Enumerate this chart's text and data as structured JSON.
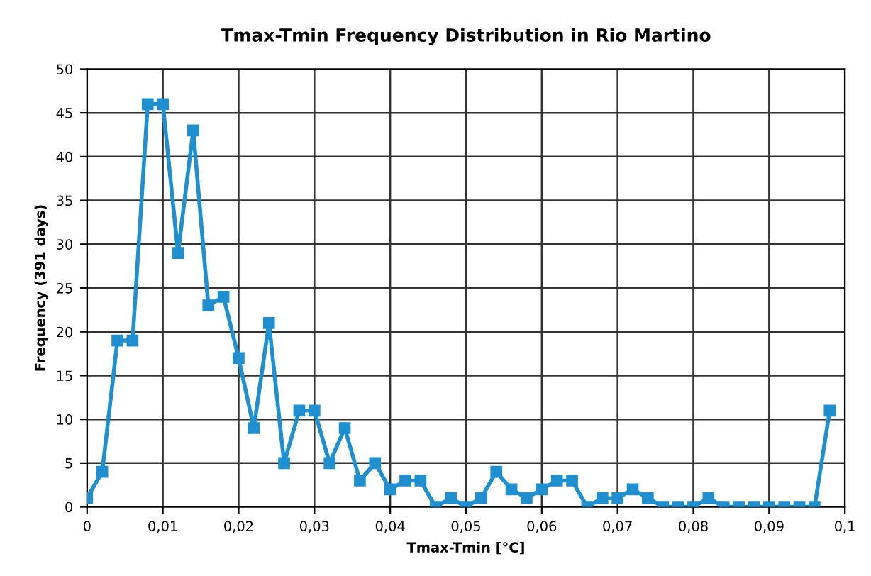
{
  "chart_data": {
    "type": "line",
    "title": "Tmax-Tmin Frequency Distribution in Rio Martino",
    "xlabel": "Tmax-Tmin [°C]",
    "ylabel": "Frequency (391 days)",
    "x": [
      0,
      0.002,
      0.004,
      0.006,
      0.008,
      0.01,
      0.012,
      0.014,
      0.016,
      0.018,
      0.02,
      0.022,
      0.024,
      0.026,
      0.028,
      0.03,
      0.032,
      0.034,
      0.036,
      0.038,
      0.04,
      0.042,
      0.044,
      0.046,
      0.048,
      0.05,
      0.052,
      0.054,
      0.056,
      0.058,
      0.06,
      0.062,
      0.064,
      0.066,
      0.068,
      0.07,
      0.072,
      0.074,
      0.076,
      0.078,
      0.08,
      0.082,
      0.084,
      0.086,
      0.088,
      0.09,
      0.092,
      0.094,
      0.096,
      0.098
    ],
    "series": [
      {
        "color": "#1f8fd0",
        "values": [
          1,
          4,
          19,
          19,
          46,
          46,
          29,
          43,
          23,
          24,
          17,
          9,
          21,
          5,
          11,
          11,
          5,
          9,
          3,
          5,
          2,
          3,
          3,
          0,
          1,
          0,
          1,
          4,
          2,
          1,
          2,
          3,
          3,
          0,
          1,
          1,
          2,
          1,
          0,
          0,
          0,
          1,
          0,
          0,
          0,
          0,
          0,
          0,
          0,
          11
        ]
      }
    ],
    "xlim": [
      0,
      0.1
    ],
    "ylim": [
      0,
      50
    ],
    "xticks": [
      0,
      {
        "value": 0.01,
        "label": "0,01"
      },
      {
        "value": 0.02,
        "label": "0,02"
      },
      {
        "value": 0.03,
        "label": "0,03"
      },
      {
        "value": 0.04,
        "label": "0,04"
      },
      {
        "value": 0.05,
        "label": "0,05"
      },
      {
        "value": 0.06,
        "label": "0,06"
      },
      {
        "value": 0.07,
        "label": "0,07"
      },
      {
        "value": 0.08,
        "label": "0,08"
      },
      {
        "value": 0.09,
        "label": "0,09"
      },
      {
        "value": 0.1,
        "label": "0,1"
      }
    ],
    "yticks": [
      0,
      5,
      10,
      15,
      20,
      25,
      30,
      35,
      40,
      45,
      50
    ],
    "grid": true,
    "marker": "square",
    "line_style": "solid"
  }
}
